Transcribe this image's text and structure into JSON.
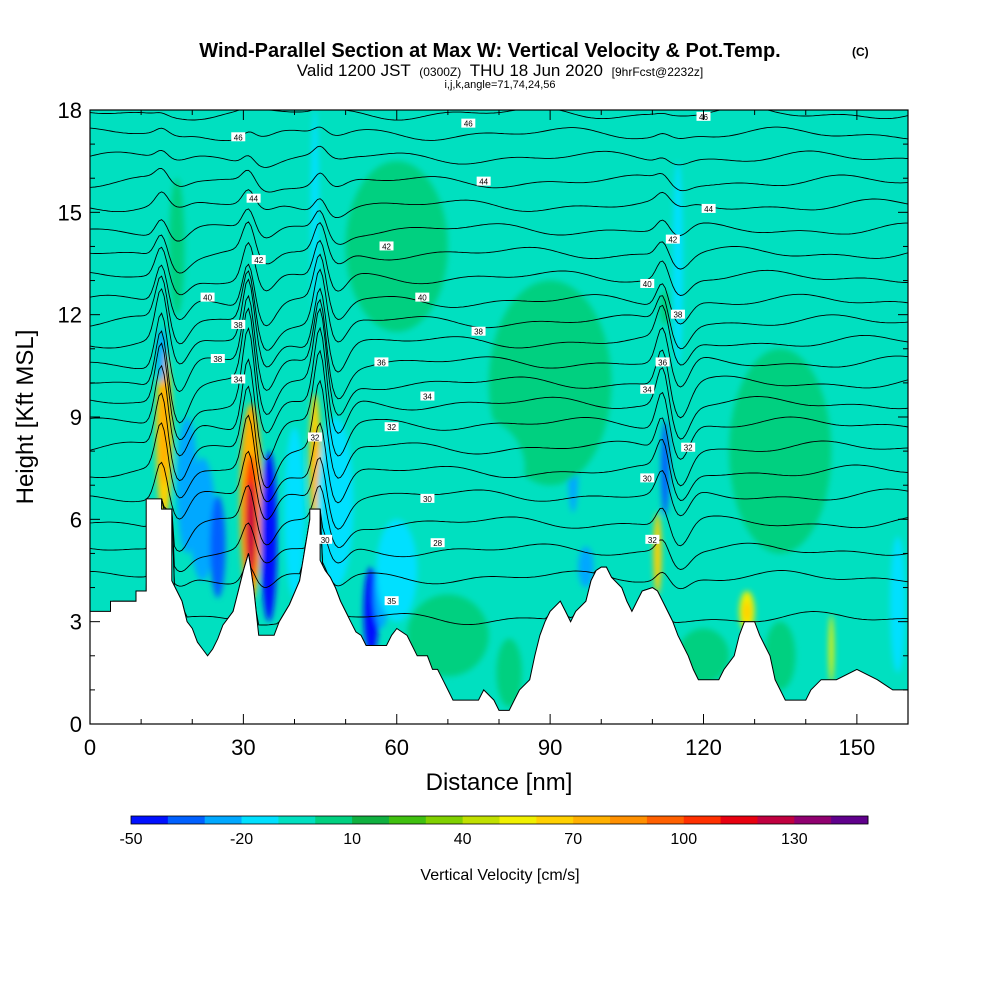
{
  "chart_data": {
    "type": "heatmap",
    "title": "Wind-Parallel Section at Max W: Vertical Velocity & Pot.Temp.",
    "title_mark": "(C)",
    "subtitle": {
      "valid": "Valid 1200 JST",
      "utc": "(0300Z)",
      "date": "THU 18 Jun 2020",
      "forecast": "[9hrFcst@2232z]"
    },
    "ijk_label": "i,j,k,angle=71,74,24,56",
    "xlabel": "Distance [nm]",
    "ylabel": "Height [Kft MSL]",
    "xlim": [
      0,
      160
    ],
    "ylim": [
      0,
      18
    ],
    "x_ticks": [
      "0",
      "30",
      "60",
      "90",
      "120",
      "150"
    ],
    "y_ticks": [
      "0",
      "3",
      "6",
      "9",
      "12",
      "15",
      "18"
    ],
    "colorbar": {
      "label": "Vertical Velocity [cm/s]",
      "tick_labels": [
        "-50",
        "-20",
        "10",
        "40",
        "70",
        "100",
        "130"
      ],
      "tick_values": [
        -50,
        -20,
        10,
        40,
        70,
        100,
        130
      ],
      "min": -50,
      "max": 150,
      "colors": [
        "#0010ff",
        "#0060ff",
        "#00a8ff",
        "#00e0ff",
        "#00e0c0",
        "#00d080",
        "#10b040",
        "#40c010",
        "#80d000",
        "#c0e000",
        "#f0f000",
        "#ffd000",
        "#ffb000",
        "#ff9000",
        "#ff6000",
        "#ff3000",
        "#e80010",
        "#c00040",
        "#900070",
        "#60008c"
      ]
    },
    "terrain": [
      [
        0,
        3.3
      ],
      [
        4,
        3.3
      ],
      [
        4,
        3.6
      ],
      [
        9,
        3.6
      ],
      [
        9,
        3.9
      ],
      [
        11,
        3.9
      ],
      [
        11,
        6.6
      ],
      [
        14,
        6.6
      ],
      [
        14,
        6.3
      ],
      [
        16,
        6.3
      ],
      [
        16,
        4.2
      ],
      [
        18,
        3.6
      ],
      [
        19,
        3.0
      ],
      [
        20,
        2.8
      ],
      [
        21,
        2.4
      ],
      [
        22,
        2.2
      ],
      [
        23,
        2.0
      ],
      [
        24,
        2.2
      ],
      [
        25,
        2.5
      ],
      [
        26,
        2.9
      ],
      [
        28,
        3.3
      ],
      [
        29,
        3.9
      ],
      [
        30,
        4.5
      ],
      [
        31,
        5.0
      ],
      [
        32,
        4.0
      ],
      [
        33,
        2.6
      ],
      [
        36,
        2.6
      ],
      [
        37,
        3.0
      ],
      [
        39,
        3.5
      ],
      [
        41,
        4.2
      ],
      [
        42,
        5.1
      ],
      [
        43,
        6.0
      ],
      [
        43,
        6.3
      ],
      [
        45,
        6.3
      ],
      [
        45,
        4.8
      ],
      [
        46,
        4.5
      ],
      [
        47,
        4.3
      ],
      [
        48,
        4.0
      ],
      [
        49,
        3.6
      ],
      [
        50,
        3.3
      ],
      [
        51,
        3.0
      ],
      [
        52,
        2.7
      ],
      [
        53,
        2.6
      ],
      [
        54,
        2.3
      ],
      [
        58,
        2.3
      ],
      [
        59,
        2.6
      ],
      [
        60,
        2.8
      ],
      [
        62,
        2.6
      ],
      [
        63,
        2.3
      ],
      [
        64,
        2.0
      ],
      [
        66,
        2.0
      ],
      [
        67,
        1.6
      ],
      [
        68,
        1.6
      ],
      [
        69,
        1.3
      ],
      [
        70,
        1.0
      ],
      [
        71,
        0.7
      ],
      [
        76,
        0.7
      ],
      [
        77,
        1.0
      ],
      [
        79,
        0.7
      ],
      [
        80,
        0.4
      ],
      [
        82,
        0.4
      ],
      [
        83,
        0.7
      ],
      [
        84,
        1.0
      ],
      [
        86,
        1.3
      ],
      [
        87,
        2.0
      ],
      [
        88,
        2.6
      ],
      [
        89,
        3.0
      ],
      [
        90,
        3.3
      ],
      [
        92,
        3.6
      ],
      [
        93,
        3.3
      ],
      [
        94,
        3.0
      ],
      [
        95,
        3.3
      ],
      [
        97,
        3.6
      ],
      [
        98,
        4.2
      ],
      [
        99,
        4.5
      ],
      [
        100,
        4.6
      ],
      [
        101,
        4.6
      ],
      [
        102,
        4.3
      ],
      [
        104,
        4.0
      ],
      [
        105,
        3.6
      ],
      [
        106,
        3.3
      ],
      [
        107,
        3.6
      ],
      [
        108,
        3.9
      ],
      [
        110,
        4.0
      ],
      [
        111,
        3.9
      ],
      [
        112,
        3.6
      ],
      [
        113,
        3.3
      ],
      [
        114,
        3.0
      ],
      [
        115,
        2.6
      ],
      [
        116,
        2.3
      ],
      [
        117,
        2.0
      ],
      [
        118,
        1.6
      ],
      [
        119,
        1.3
      ],
      [
        123,
        1.3
      ],
      [
        124,
        1.6
      ],
      [
        126,
        2.0
      ],
      [
        127,
        2.6
      ],
      [
        128,
        3.0
      ],
      [
        130,
        3.0
      ],
      [
        131,
        2.6
      ],
      [
        132,
        2.3
      ],
      [
        133,
        2.0
      ],
      [
        134,
        1.3
      ],
      [
        135,
        1.0
      ],
      [
        136,
        0.7
      ],
      [
        140,
        0.7
      ],
      [
        141,
        1.0
      ],
      [
        143,
        1.3
      ],
      [
        146,
        1.3
      ],
      [
        150,
        1.6
      ],
      [
        154,
        1.3
      ],
      [
        157,
        1.0
      ],
      [
        160,
        1.0
      ]
    ],
    "cells": [
      {
        "x": 14.5,
        "y": 8.5,
        "rx": 1.6,
        "ry": 2.5,
        "w": 60
      },
      {
        "x": 14.5,
        "y": 8.8,
        "rx": 1.0,
        "ry": 1.8,
        "w": 75
      },
      {
        "x": 14.0,
        "y": 10.8,
        "rx": 0.8,
        "ry": 0.8,
        "w": -30
      },
      {
        "x": 31.5,
        "y": 6.5,
        "rx": 2.2,
        "ry": 2.9,
        "w": 70
      },
      {
        "x": 31.5,
        "y": 6.0,
        "rx": 1.3,
        "ry": 1.9,
        "w": 105
      },
      {
        "x": 31.5,
        "y": 5.8,
        "rx": 0.8,
        "ry": 1.3,
        "w": 125
      },
      {
        "x": 35.0,
        "y": 5.5,
        "rx": 1.6,
        "ry": 2.5,
        "w": -45
      },
      {
        "x": 44.0,
        "y": 7.8,
        "rx": 1.1,
        "ry": 1.9,
        "w": 60
      },
      {
        "x": 44.0,
        "y": 7.5,
        "rx": 0.6,
        "ry": 1.2,
        "w": 75
      },
      {
        "x": 44.0,
        "y": 15.0,
        "rx": 0.8,
        "ry": 3.0,
        "w": -20
      },
      {
        "x": 22.0,
        "y": 6.0,
        "rx": 2.5,
        "ry": 1.8,
        "w": -30
      },
      {
        "x": 25.0,
        "y": 5.2,
        "rx": 1.5,
        "ry": 1.5,
        "w": -35
      },
      {
        "x": 19.0,
        "y": 7.0,
        "rx": 2.0,
        "ry": 2.0,
        "w": -22
      },
      {
        "x": 40.0,
        "y": 6.2,
        "rx": 2.0,
        "ry": 2.5,
        "w": -20
      },
      {
        "x": 48.0,
        "y": 6.5,
        "rx": 3.5,
        "ry": 2.5,
        "w": -20
      },
      {
        "x": 55.0,
        "y": 3.3,
        "rx": 1.5,
        "ry": 1.3,
        "w": -45
      },
      {
        "x": 57.0,
        "y": 3.8,
        "rx": 1.5,
        "ry": 1.0,
        "w": -30
      },
      {
        "x": 60.0,
        "y": 4.5,
        "rx": 4.0,
        "ry": 1.5,
        "w": -20
      },
      {
        "x": 94.5,
        "y": 7.5,
        "rx": 1.0,
        "ry": 1.3,
        "w": -30
      },
      {
        "x": 97.0,
        "y": 4.6,
        "rx": 1.5,
        "ry": 0.6,
        "w": -30
      },
      {
        "x": 112.5,
        "y": 7.5,
        "rx": 0.8,
        "ry": 1.4,
        "w": -40
      },
      {
        "x": 111.0,
        "y": 5.0,
        "rx": 0.8,
        "ry": 1.2,
        "w": 60
      },
      {
        "x": 112.5,
        "y": 12.2,
        "rx": 1.0,
        "ry": 0.5,
        "w": 5
      },
      {
        "x": 128.5,
        "y": 3.3,
        "rx": 1.5,
        "ry": 0.6,
        "w": 50
      },
      {
        "x": 128.5,
        "y": 3.3,
        "rx": 0.8,
        "ry": 0.3,
        "w": 65
      },
      {
        "x": 145.0,
        "y": 2.2,
        "rx": 0.5,
        "ry": 1.0,
        "w": 50
      },
      {
        "x": 158.0,
        "y": 3.5,
        "rx": 1.5,
        "ry": 2.0,
        "w": -20
      },
      {
        "x": 70.0,
        "y": 2.6,
        "rx": 8.0,
        "ry": 1.2,
        "w": 8
      },
      {
        "x": 120.0,
        "y": 2.0,
        "rx": 5.0,
        "ry": 0.8,
        "w": 8
      },
      {
        "x": 135.0,
        "y": 2.0,
        "rx": 3.0,
        "ry": 1.0,
        "w": 8
      },
      {
        "x": 82.0,
        "y": 1.5,
        "rx": 2.5,
        "ry": 1.0,
        "w": 8
      },
      {
        "x": 115.0,
        "y": 13.5,
        "rx": 1.0,
        "ry": 3.0,
        "w": -20
      },
      {
        "x": 17.0,
        "y": 14.0,
        "rx": 1.5,
        "ry": 2.0,
        "w": 2
      },
      {
        "x": 60.0,
        "y": 14.0,
        "rx": 10.0,
        "ry": 2.5,
        "w": 2
      },
      {
        "x": 90.0,
        "y": 10.0,
        "rx": 12.0,
        "ry": 3.0,
        "w": 2
      },
      {
        "x": 135.0,
        "y": 8.0,
        "rx": 10.0,
        "ry": 3.0,
        "w": 2
      },
      {
        "x": 140.0,
        "y": 14.0,
        "rx": 6.0,
        "ry": 2.0,
        "w": -8
      },
      {
        "x": 100.0,
        "y": 16.0,
        "rx": 8.0,
        "ry": 1.5,
        "w": -8
      },
      {
        "x": 75.0,
        "y": 7.5,
        "rx": 10.0,
        "ry": 1.5,
        "w": -8
      },
      {
        "x": 5.0,
        "y": 8.0,
        "rx": 3.0,
        "ry": 2.0,
        "w": -8
      }
    ],
    "theta_levels": [
      {
        "y0": 3.1,
        "amp": 0.0,
        "dip": 0.0
      },
      {
        "y0": 4.3,
        "amp": 0.6,
        "dip": 0.3
      },
      {
        "y0": 5.1,
        "amp": 0.9,
        "dip": 0.5
      },
      {
        "y0": 5.9,
        "amp": 1.3,
        "dip": 0.7
      },
      {
        "y0": 6.7,
        "amp": 1.6,
        "dip": 0.8
      },
      {
        "y0": 7.4,
        "amp": 2.0,
        "dip": 0.9
      },
      {
        "y0": 8.1,
        "amp": 2.4,
        "dip": 1.0
      },
      {
        "y0": 8.8,
        "amp": 2.6,
        "dip": 1.0
      },
      {
        "y0": 9.4,
        "amp": 2.7,
        "dip": 1.0
      },
      {
        "y0": 10.0,
        "amp": 2.6,
        "dip": 1.0
      },
      {
        "y0": 10.6,
        "amp": 2.4,
        "dip": 0.9
      },
      {
        "y0": 11.2,
        "amp": 2.2,
        "dip": 0.8
      },
      {
        "y0": 11.8,
        "amp": 1.9,
        "dip": 0.7
      },
      {
        "y0": 12.4,
        "amp": 1.6,
        "dip": 0.6
      },
      {
        "y0": 13.1,
        "amp": 1.3,
        "dip": 0.5
      },
      {
        "y0": 13.8,
        "amp": 1.0,
        "dip": 0.4
      },
      {
        "y0": 14.5,
        "amp": 0.7,
        "dip": 0.3
      },
      {
        "y0": 15.2,
        "amp": 0.5,
        "dip": 0.2
      },
      {
        "y0": 15.9,
        "amp": 0.4,
        "dip": 0.2
      },
      {
        "y0": 16.6,
        "amp": 0.3,
        "dip": 0.1
      },
      {
        "y0": 17.3,
        "amp": 0.2,
        "dip": 0.1
      },
      {
        "y0": 17.9,
        "amp": 0.1,
        "dip": 0.0
      }
    ],
    "contour_labels": [
      {
        "text": "46",
        "x": 29,
        "y": 17.2
      },
      {
        "text": "46",
        "x": 74,
        "y": 17.6
      },
      {
        "text": "46",
        "x": 120,
        "y": 17.8
      },
      {
        "text": "44",
        "x": 32,
        "y": 15.4
      },
      {
        "text": "44",
        "x": 77,
        "y": 15.9
      },
      {
        "text": "44",
        "x": 121,
        "y": 15.1
      },
      {
        "text": "42",
        "x": 33,
        "y": 13.6
      },
      {
        "text": "42",
        "x": 58,
        "y": 14.0
      },
      {
        "text": "42",
        "x": 114,
        "y": 14.2
      },
      {
        "text": "40",
        "x": 23,
        "y": 12.5
      },
      {
        "text": "40",
        "x": 65,
        "y": 12.5
      },
      {
        "text": "40",
        "x": 109,
        "y": 12.9
      },
      {
        "text": "38",
        "x": 29,
        "y": 11.7
      },
      {
        "text": "38",
        "x": 76,
        "y": 11.5
      },
      {
        "text": "38",
        "x": 115,
        "y": 12.0
      },
      {
        "text": "38",
        "x": 25,
        "y": 10.7
      },
      {
        "text": "36",
        "x": 57,
        "y": 10.6
      },
      {
        "text": "36",
        "x": 112,
        "y": 10.6
      },
      {
        "text": "34",
        "x": 29,
        "y": 10.1
      },
      {
        "text": "34",
        "x": 66,
        "y": 9.6
      },
      {
        "text": "34",
        "x": 109,
        "y": 9.8
      },
      {
        "text": "32",
        "x": 44,
        "y": 8.4
      },
      {
        "text": "32",
        "x": 59,
        "y": 8.7
      },
      {
        "text": "32",
        "x": 117,
        "y": 8.1
      },
      {
        "text": "30",
        "x": 66,
        "y": 6.6
      },
      {
        "text": "30",
        "x": 109,
        "y": 7.2
      },
      {
        "text": "30",
        "x": 46,
        "y": 5.4
      },
      {
        "text": "28",
        "x": 68,
        "y": 5.3
      },
      {
        "text": "32",
        "x": 110,
        "y": 5.4
      },
      {
        "text": "35",
        "x": 59,
        "y": 3.6
      }
    ]
  }
}
